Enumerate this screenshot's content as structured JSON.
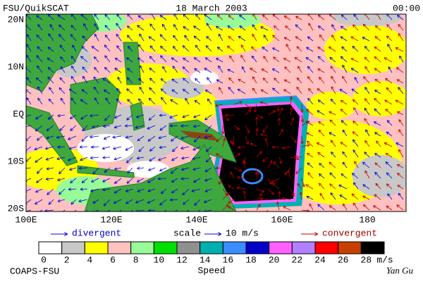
{
  "header": {
    "left": "FSU/QuikSCAT",
    "center": "18 March 2003",
    "right": "00:00"
  },
  "map": {
    "lat_labels": [
      "20N",
      "10N",
      "EQ",
      "10S",
      "20S"
    ],
    "lon_labels": [
      "100E",
      "120E",
      "140E",
      "160E",
      "180"
    ]
  },
  "legend": {
    "divergent": "divergent",
    "scale": "scale",
    "scale_value": "10 m/s",
    "convergent": "convergent"
  },
  "colorbar": {
    "ticks": [
      0,
      2,
      4,
      6,
      8,
      10,
      12,
      14,
      16,
      18,
      20,
      22,
      24,
      26,
      28
    ],
    "unit": "m/s",
    "title": "Speed",
    "colors": [
      "#ffffff",
      "#c8c8c8",
      "#ffff00",
      "#ffc0c0",
      "#98fb98",
      "#00e000",
      "#909090",
      "#00b0b0",
      "#3a8cff",
      "#0000c8",
      "#ff60ff",
      "#b080ff",
      "#ff0000",
      "#c84000",
      "#000000"
    ]
  },
  "footer": {
    "left": "COAPS-FSU",
    "right": "Yan Gu"
  }
}
